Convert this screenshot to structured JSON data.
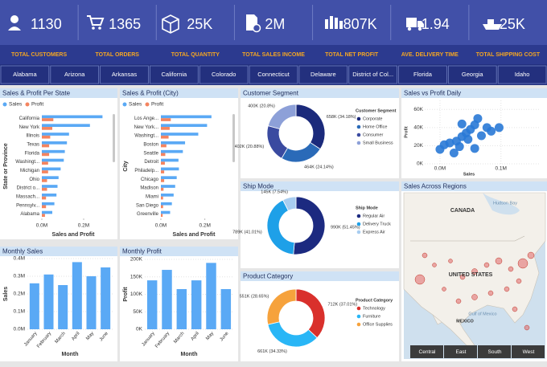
{
  "kpis": [
    {
      "value": "1130",
      "label": "TOTAL CUSTOMERS"
    },
    {
      "value": "1365",
      "label": "TOTAL ORDERS"
    },
    {
      "value": "25K",
      "label": "TOTAL QUANTITY"
    },
    {
      "value": "2M",
      "label": "TOTAL SALES INCOME"
    },
    {
      "value": "807K",
      "label": "TOTAL NET PROFIT"
    },
    {
      "value": "1.94",
      "label": "AVE. DELIVERY TIME"
    },
    {
      "value": "25K",
      "label": "TOTAL SHIPPING COST"
    }
  ],
  "slicer": [
    "Alabama",
    "Arizona",
    "Arkansas",
    "California",
    "Colorado",
    "Connecticut",
    "Delaware",
    "District of Col...",
    "Florida",
    "Georgia",
    "Idaho"
  ],
  "map": {
    "title": "Sales Across Regions",
    "labels": [
      "CANADA",
      "UNITED STATES",
      "MEXICO",
      "Hudson Bay",
      "Gulf of Mexico"
    ],
    "buttons": [
      "Central",
      "East",
      "South",
      "West"
    ]
  },
  "chart_data": [
    {
      "type": "hbar",
      "title": "Sales & Profit Per State",
      "xlabel": "Sales and Profit",
      "ylabel": "State or Province",
      "categories": [
        "California",
        "New York",
        "Illinois",
        "Texas",
        "Florida",
        "Washingt...",
        "Michigan",
        "Ohio",
        "District o...",
        "Massach...",
        "Pennsylv...",
        "Alabama"
      ],
      "series": [
        {
          "name": "Sales",
          "color": "#5aa9f5",
          "values": [
            290000,
            230000,
            130000,
            120000,
            110000,
            105000,
            90000,
            80000,
            75000,
            70000,
            60000,
            50000
          ]
        },
        {
          "name": "Profit",
          "color": "#f4845f",
          "values": [
            55000,
            50000,
            40000,
            35000,
            35000,
            30000,
            30000,
            25000,
            25000,
            20000,
            20000,
            15000
          ]
        }
      ],
      "xlim": [
        0,
        300000
      ],
      "xticks": [
        {
          "value": 0,
          "label": "0.0M"
        },
        {
          "value": 200000,
          "label": "0.2M"
        }
      ]
    },
    {
      "type": "hbar",
      "title": "Sales & Profit (City)",
      "xlabel": "Sales and Profit",
      "ylabel": "City",
      "categories": [
        "Los Ange...",
        "New York...",
        "Washingt...",
        "Boston",
        "Seattle",
        "Detroit",
        "Philadelp...",
        "Chicago",
        "Madison",
        "Miami",
        "San Diego",
        "Greenville"
      ],
      "series": [
        {
          "name": "Sales",
          "color": "#5aa9f5",
          "values": [
            230000,
            210000,
            170000,
            110000,
            100000,
            80000,
            82000,
            72000,
            65000,
            58000,
            50000,
            42000
          ]
        },
        {
          "name": "Profit",
          "color": "#f4845f",
          "values": [
            45000,
            40000,
            35000,
            25000,
            20000,
            18000,
            15000,
            15000,
            12000,
            10000,
            10000,
            8000
          ]
        }
      ],
      "xlim": [
        0,
        300000
      ],
      "xticks": [
        {
          "value": 0,
          "label": "0.0M"
        },
        {
          "value": 200000,
          "label": "0.2M"
        }
      ]
    },
    {
      "type": "bar",
      "title": "Monthly Sales",
      "xlabel": "Month",
      "ylabel": "Sales",
      "color": "#5aa9f5",
      "categories": [
        "January",
        "February",
        "March",
        "April",
        "May",
        "June"
      ],
      "values": [
        260000,
        310000,
        250000,
        380000,
        300000,
        350000
      ],
      "ylim": [
        0,
        400000
      ],
      "yticks": [
        {
          "value": 0,
          "label": "0.0M"
        },
        {
          "value": 100000,
          "label": "0.1M"
        },
        {
          "value": 200000,
          "label": "0.2M"
        },
        {
          "value": 300000,
          "label": "0.3M"
        },
        {
          "value": 400000,
          "label": "0.4M"
        }
      ],
      "grid": true
    },
    {
      "type": "bar",
      "title": "Monthly Profit",
      "xlabel": "Month",
      "ylabel": "Profit",
      "color": "#5aa9f5",
      "categories": [
        "January",
        "February",
        "March",
        "April",
        "May",
        "June"
      ],
      "values": [
        140000,
        170000,
        115000,
        140000,
        190000,
        115000
      ],
      "ylim": [
        0,
        200000
      ],
      "yticks": [
        {
          "value": 0,
          "label": "0K"
        },
        {
          "value": 50000,
          "label": "50K"
        },
        {
          "value": 100000,
          "label": "100K"
        },
        {
          "value": 150000,
          "label": "150K"
        },
        {
          "value": 200000,
          "label": "200K"
        }
      ],
      "grid": true
    },
    {
      "type": "donut",
      "title": "Customer Segment",
      "legend_title": "Customer Segment",
      "categories": [
        "Corporate",
        "Home Office",
        "Consumer",
        "Small Business"
      ],
      "values": [
        658000,
        464000,
        402000,
        400000
      ],
      "value_labels": [
        "658K (34.18%)",
        "464K (24.14%)",
        "402K (20.88%)",
        "400K (20.8%)"
      ],
      "colors": [
        "#1b2a7b",
        "#2a6ab8",
        "#3a4aa0",
        "#8da0d8"
      ]
    },
    {
      "type": "donut",
      "title": "Ship Mode",
      "legend_title": "Ship Mode",
      "categories": [
        "Regular Air",
        "Delivery Truck",
        "Express Air"
      ],
      "values": [
        990000,
        789000,
        145000
      ],
      "value_labels": [
        "990K (51.45%)",
        "789K (41.01%)",
        "145K (7.54%)"
      ],
      "colors": [
        "#1c2a80",
        "#1ea0e8",
        "#a8cdf0"
      ]
    },
    {
      "type": "donut",
      "title": "Product Category",
      "legend_title": "Product Category",
      "categories": [
        "Technology",
        "Furniture",
        "Office Supplies"
      ],
      "values": [
        712000,
        661000,
        551000
      ],
      "value_labels": [
        "712K (37.01%)",
        "661K (34.33%)",
        "551K (28.65%)"
      ],
      "colors": [
        "#d9302c",
        "#29b6f6",
        "#f6a23c"
      ]
    },
    {
      "type": "scatter",
      "title": "Sales vs Profit Daily",
      "xlabel": "Sales",
      "ylabel": "Profit",
      "color": "#2979d6",
      "x": [
        0,
        7000,
        16000,
        27000,
        36000,
        43000,
        32000,
        50000,
        57000,
        68000,
        77000,
        84000,
        57000,
        23000,
        97000,
        36000,
        46000,
        62000
      ],
      "values": [
        16000,
        21000,
        23000,
        25000,
        30000,
        34000,
        19000,
        38000,
        43000,
        31000,
        40000,
        36000,
        17000,
        12000,
        40000,
        44000,
        27000,
        50000
      ],
      "xlim": [
        -25000,
        165000
      ],
      "xticks": [
        {
          "value": 0,
          "label": "0.0M"
        },
        {
          "value": 100000,
          "label": "0.1M"
        }
      ],
      "ylim": [
        0,
        70000
      ],
      "yticks": [
        {
          "value": 0,
          "label": "0K"
        },
        {
          "value": 20000,
          "label": "20K"
        },
        {
          "value": 40000,
          "label": "40K"
        },
        {
          "value": 60000,
          "label": "60K"
        }
      ],
      "grid": true
    }
  ]
}
